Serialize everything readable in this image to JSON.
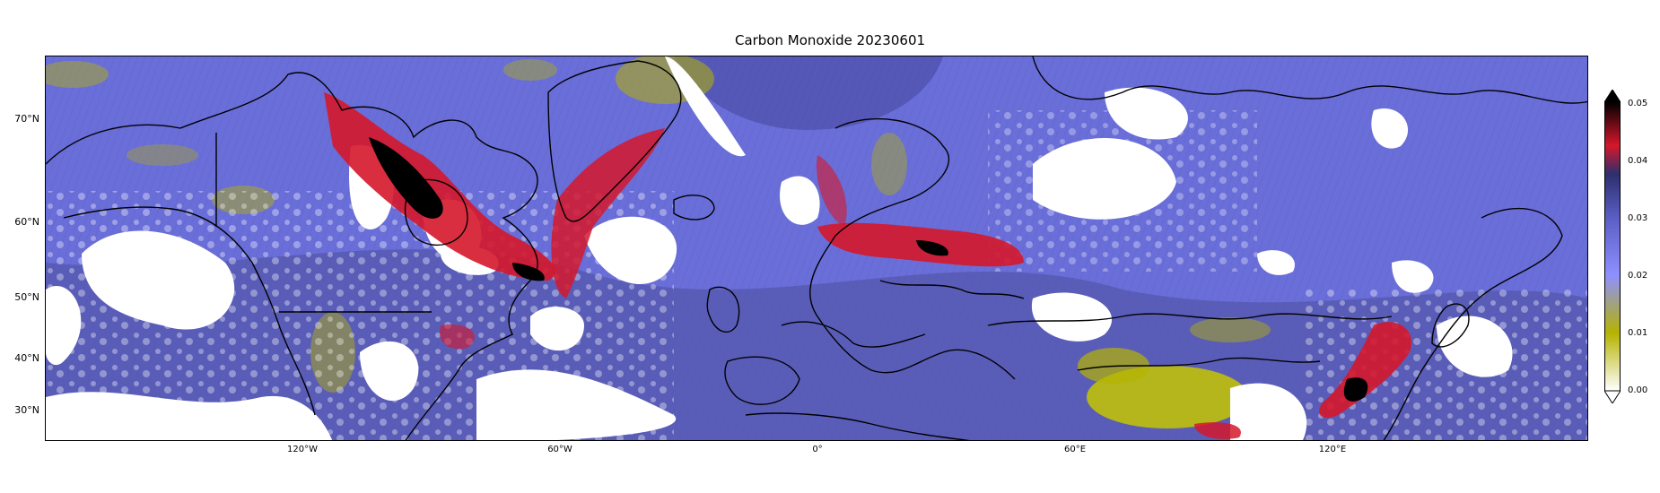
{
  "title": "Carbon Monoxide 20230601",
  "map": {
    "projection": "PlateCarree",
    "lat_ticks": [
      "70°N",
      "60°N",
      "50°N",
      "40°N",
      "30°N"
    ],
    "lon_ticks": [
      "120°W",
      "60°W",
      "0°",
      "60°E",
      "120°E"
    ]
  },
  "colorbar": {
    "ticks": [
      "0.05",
      "0.04",
      "0.03",
      "0.02",
      "0.01",
      "0.00"
    ],
    "min": 0.0,
    "max": 0.05,
    "extend": "both",
    "colors": [
      "#ffffff",
      "#b5b300",
      "#6f72ff",
      "#3b3f86",
      "#d5172b",
      "#000000"
    ]
  },
  "colors": {
    "background_field": "#6a6ed8",
    "dark_field": "#3f4296",
    "high_co": "#d5172b",
    "peak_co": "#000000",
    "low_co": "#b5b300",
    "cloud_mask": "#ffffff",
    "coastline": "#000000"
  }
}
